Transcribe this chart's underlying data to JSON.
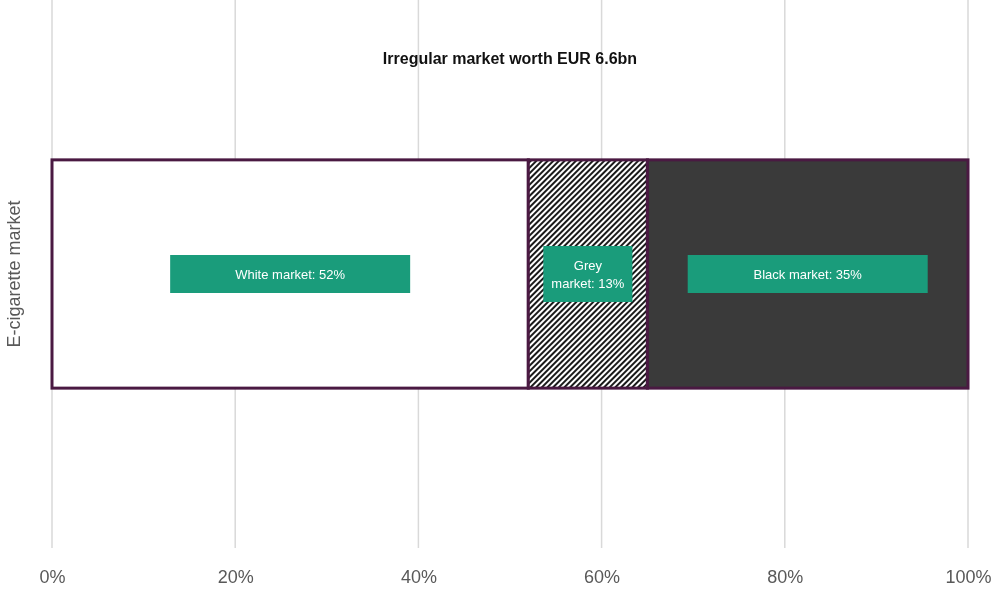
{
  "chart_data": {
    "type": "bar",
    "orientation": "horizontal",
    "stacked": true,
    "title": "Irregular market worth EUR 6.6bn",
    "categories": [
      "E-cigarette market"
    ],
    "series": [
      {
        "color": "#ffffff",
        "values": [
          52
        ],
        "value_labels": [
          "White market: 52%"
        ]
      },
      {
        "color": "#1a1a1a",
        "values": [
          13
        ],
        "value_labels": [
          "Grey market: 13%"
        ]
      },
      {
        "color": "#3a3a3a",
        "values": [
          35
        ],
        "value_labels": [
          "Black market: 35%"
        ]
      }
    ],
    "xlim": [
      0,
      100
    ],
    "xticks": [
      {
        "value": 0,
        "label": "0%"
      },
      {
        "value": 20,
        "label": "20%"
      },
      {
        "value": 40,
        "label": "40%"
      },
      {
        "value": 60,
        "label": "60%"
      },
      {
        "value": 80,
        "label": "80%"
      },
      {
        "value": 100,
        "label": "100%"
      }
    ],
    "grid": "x"
  }
}
